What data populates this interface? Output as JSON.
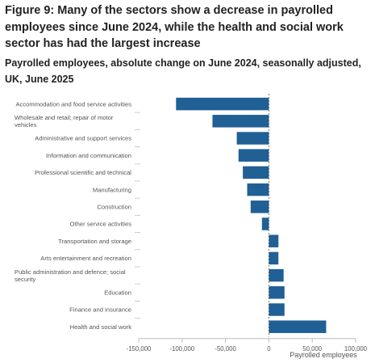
{
  "chart_data": {
    "type": "bar",
    "orientation": "horizontal",
    "title": "Figure 9: Many of the sectors show a decrease in payrolled employees since June 2024, while the health and social work sector has had the largest increase",
    "subtitle": "Payrolled employees, absolute change on June 2024, seasonally adjusted, UK, June 2025",
    "xlabel": "Payrolled employees",
    "ylabel": "",
    "xlim": [
      -150000,
      100000
    ],
    "x_ticks": [
      -150000,
      -100000,
      -50000,
      0,
      50000,
      100000
    ],
    "x_tick_labels": [
      "-150,000",
      "-100,000",
      "-50,000",
      "0",
      "50,000",
      "100,000"
    ],
    "grid": false,
    "bar_color": "#206095",
    "categories": [
      "Accommodation and food service activities",
      "Wholesale and retail; repair of motor vehicles",
      "Administrative and support services",
      "Information and communication",
      "Professional scientific and technical",
      "Manufacturing",
      "Construction",
      "Other service activities",
      "Transportation and storage",
      "Arts entertainment and recreation",
      "Public administration and defence; social security",
      "Education",
      "Finance and insurance",
      "Health and social work"
    ],
    "category_label_lines": [
      [
        "Accommodation and food service activities"
      ],
      [
        "Wholesale and retail; repair of motor",
        "vehicles"
      ],
      [
        "Administrative and support services"
      ],
      [
        "Information and communication"
      ],
      [
        "Professional scientific and technical"
      ],
      [
        "Manufacturing"
      ],
      [
        "Construction"
      ],
      [
        "Other service activities"
      ],
      [
        "Transportation and storage"
      ],
      [
        "Arts entertainment and recreation"
      ],
      [
        "Public administration and defence; social",
        "security"
      ],
      [
        "Education"
      ],
      [
        "Finance and insurance"
      ],
      [
        "Health and social work"
      ]
    ],
    "values": [
      -107000,
      -65000,
      -37000,
      -35000,
      -30000,
      -25000,
      -21000,
      -8000,
      11000,
      11000,
      17000,
      18000,
      18000,
      66000
    ]
  }
}
